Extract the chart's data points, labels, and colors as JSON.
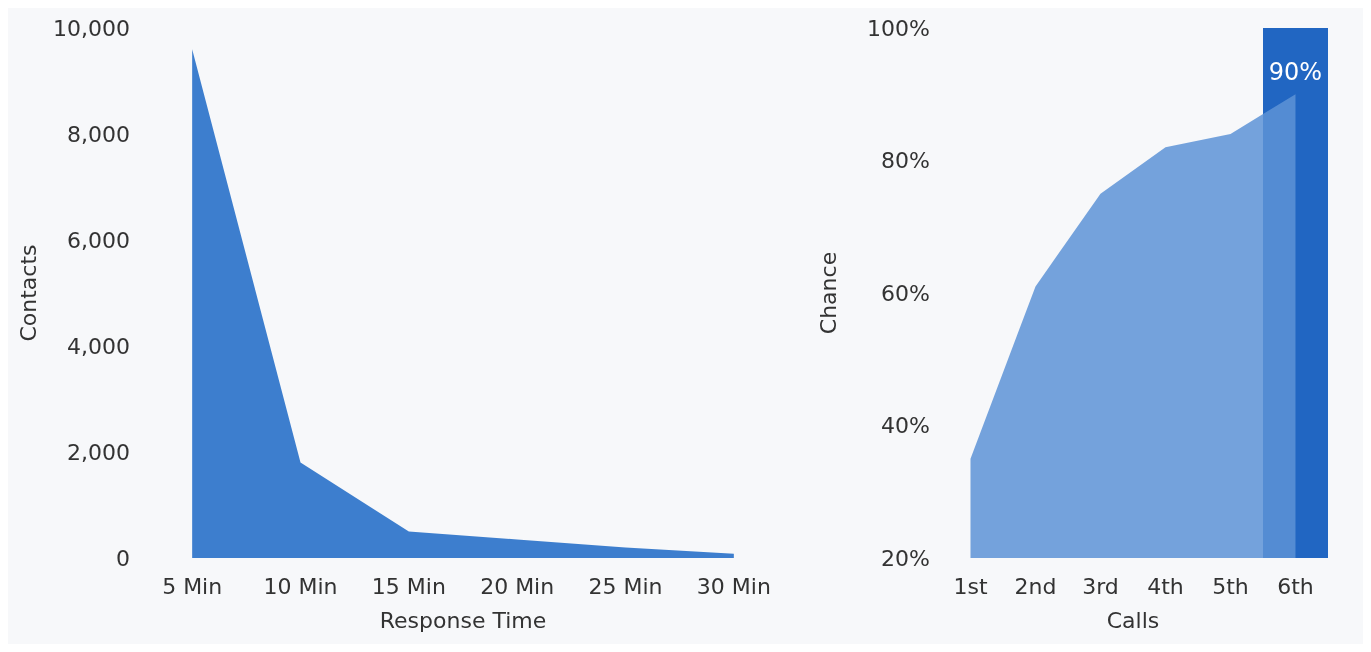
{
  "chart_data": [
    {
      "type": "area",
      "xlabel": "Response Time",
      "ylabel": "Contacts",
      "categories": [
        "5 Min",
        "10 Min",
        "15 Min",
        "20 Min",
        "25 Min",
        "30 Min"
      ],
      "values": [
        9600,
        1800,
        500,
        350,
        200,
        80
      ],
      "color": "#1c68c6",
      "ylim": [
        0,
        10000
      ],
      "yticks": [
        0,
        {
          "value": 2000,
          "label": "2,000"
        },
        {
          "value": 4000,
          "label": "4,000"
        },
        {
          "value": 6000,
          "label": "6,000"
        },
        {
          "value": 8000,
          "label": "8,000"
        },
        {
          "value": 10000,
          "label": "10,000"
        }
      ],
      "grid": false,
      "legend": false
    },
    {
      "type": "area",
      "xlabel": "Calls",
      "ylabel": "Chance",
      "categories": [
        "1st",
        "2nd",
        "3rd",
        "4th",
        "5th",
        "6th"
      ],
      "values": [
        35,
        61,
        75,
        82,
        84,
        90
      ],
      "color": "#5d93d6",
      "ylim": [
        20,
        100
      ],
      "yticks": [
        {
          "value": 20,
          "label": "20%"
        },
        {
          "value": 40,
          "label": "40%"
        },
        {
          "value": 60,
          "label": "60%"
        },
        {
          "value": 80,
          "label": "80%"
        },
        {
          "value": 100,
          "label": "100%"
        }
      ],
      "grid": false,
      "legend": false,
      "bands": [
        {
          "axis": "x",
          "from": "6th",
          "to": "6th",
          "color": "#2166c2"
        }
      ],
      "annotations": [
        {
          "text": "90%",
          "x": "6th",
          "y": 90
        }
      ]
    }
  ]
}
